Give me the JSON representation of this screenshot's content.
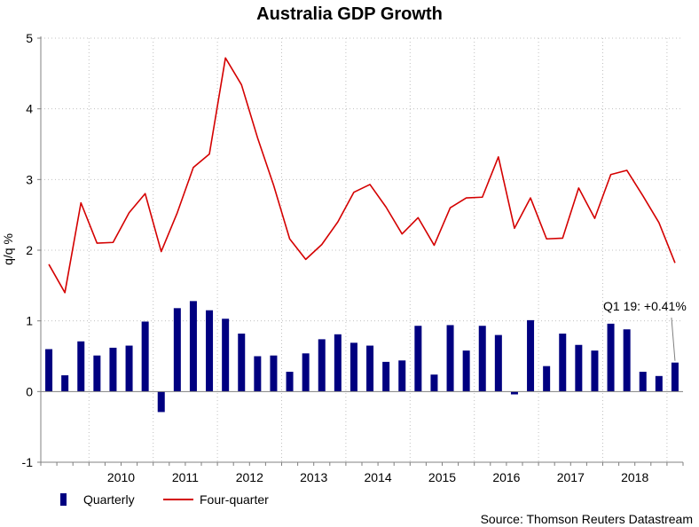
{
  "chart_data": {
    "type": "bar+line",
    "title": "Australia GDP Growth",
    "ylabel": "q/q %",
    "xlabel": "",
    "ylim": [
      -1,
      5
    ],
    "yticks": [
      -1,
      0,
      1,
      2,
      3,
      4,
      5
    ],
    "grid": true,
    "x_start": 2009.25,
    "year_labels": [
      "2010",
      "2011",
      "2012",
      "2013",
      "2014",
      "2015",
      "2016",
      "2017",
      "2018"
    ],
    "periods": [
      "Q2 09",
      "Q3 09",
      "Q4 09",
      "Q1 10",
      "Q2 10",
      "Q3 10",
      "Q4 10",
      "Q1 11",
      "Q2 11",
      "Q3 11",
      "Q4 11",
      "Q1 12",
      "Q2 12",
      "Q3 12",
      "Q4 12",
      "Q1 13",
      "Q2 13",
      "Q3 13",
      "Q4 13",
      "Q1 14",
      "Q2 14",
      "Q3 14",
      "Q4 14",
      "Q1 15",
      "Q2 15",
      "Q3 15",
      "Q4 15",
      "Q1 16",
      "Q2 16",
      "Q3 16",
      "Q4 16",
      "Q1 17",
      "Q2 17",
      "Q3 17",
      "Q4 17",
      "Q1 18",
      "Q2 18",
      "Q3 18",
      "Q4 18",
      "Q1 19"
    ],
    "series": [
      {
        "name": "Quarterly",
        "type": "bar",
        "color": "#000080",
        "values": [
          0.6,
          0.23,
          0.71,
          0.51,
          0.62,
          0.65,
          0.99,
          -0.29,
          1.18,
          1.28,
          1.15,
          1.03,
          0.82,
          0.5,
          0.51,
          0.28,
          0.54,
          0.74,
          0.81,
          0.69,
          0.65,
          0.42,
          0.44,
          0.93,
          0.24,
          0.94,
          0.58,
          0.93,
          0.8,
          -0.04,
          1.01,
          0.36,
          0.82,
          0.66,
          0.58,
          0.96,
          0.88,
          0.28,
          0.22,
          0.41
        ]
      },
      {
        "name": "Four-quarter",
        "type": "line",
        "color": "#d40000",
        "values": [
          1.8,
          1.4,
          2.67,
          2.1,
          2.11,
          2.53,
          2.8,
          1.98,
          2.53,
          3.17,
          3.36,
          4.72,
          4.34,
          3.59,
          2.92,
          2.16,
          1.87,
          2.08,
          2.4,
          2.82,
          2.93,
          2.61,
          2.23,
          2.46,
          2.07,
          2.6,
          2.74,
          2.75,
          3.32,
          2.31,
          2.74,
          2.16,
          2.17,
          2.88,
          2.45,
          3.07,
          3.13,
          2.77,
          2.39,
          1.82
        ]
      }
    ],
    "annotation": {
      "text": "Q1 19: +0.41%",
      "period": "Q1 19",
      "value": 0.41
    },
    "legend": {
      "placement": "bottom-left",
      "items": [
        "Quarterly",
        "Four-quarter"
      ]
    },
    "source": "Source: Thomson Reuters Datastream",
    "colors": {
      "grid": "#c0c0c0",
      "axis": "#808080",
      "background": "#ffffff"
    }
  }
}
